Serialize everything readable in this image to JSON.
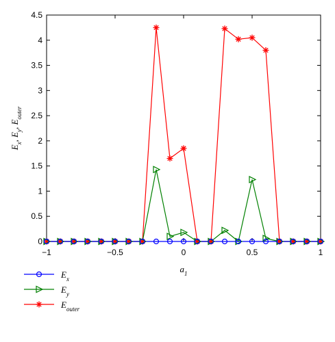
{
  "chart_data": {
    "type": "line",
    "xlabel": {
      "main": "a",
      "sub": "1"
    },
    "ylabel": {
      "parts": [
        {
          "main": "E",
          "sub": "x"
        },
        {
          "main": "E",
          "sub": "y"
        },
        {
          "main": "E",
          "sub": "outer"
        }
      ],
      "sep": ", "
    },
    "xlim": [
      -1,
      1
    ],
    "ylim": [
      0,
      4.5
    ],
    "xticks": [
      -1,
      -0.5,
      0,
      0.5,
      1
    ],
    "xtick_labels": [
      "−1",
      "−0.5",
      "0",
      "0.5",
      "1"
    ],
    "yticks": [
      0,
      0.5,
      1,
      1.5,
      2,
      2.5,
      3,
      3.5,
      4,
      4.5
    ],
    "ytick_labels": [
      "0",
      "0.5",
      "1",
      "1.5",
      "2",
      "2.5",
      "3",
      "3.5",
      "4",
      "4.5"
    ],
    "grid": false,
    "legend_position": "below-left",
    "x": [
      -1,
      -0.9,
      -0.8,
      -0.7,
      -0.6,
      -0.5,
      -0.4,
      -0.3,
      -0.2,
      -0.1,
      0,
      0.1,
      0.2,
      0.3,
      0.4,
      0.5,
      0.6,
      0.7,
      0.8,
      0.9,
      1
    ],
    "series": [
      {
        "label": {
          "main": "E",
          "sub": "x"
        },
        "color": "#0000ff",
        "marker": "circle",
        "values": [
          0,
          0,
          0,
          0,
          0,
          0,
          0,
          0,
          0,
          0,
          0,
          0,
          0,
          0,
          0,
          0,
          0,
          0,
          0,
          0,
          0
        ]
      },
      {
        "label": {
          "main": "E",
          "sub": "y"
        },
        "color": "#008000",
        "marker": "triangle-right",
        "values": [
          0,
          0,
          0,
          0,
          0,
          0,
          0,
          0,
          1.43,
          0.1,
          0.18,
          0,
          0,
          0.22,
          0,
          1.23,
          0.06,
          0,
          0,
          0,
          0
        ]
      },
      {
        "label": {
          "main": "E",
          "sub": "outer"
        },
        "color": "#ff0000",
        "marker": "asterisk",
        "values": [
          0,
          0,
          0,
          0,
          0,
          0,
          0,
          0,
          4.25,
          1.65,
          1.85,
          0,
          0,
          4.23,
          4.02,
          4.05,
          3.8,
          0,
          0,
          0,
          0
        ]
      }
    ]
  }
}
